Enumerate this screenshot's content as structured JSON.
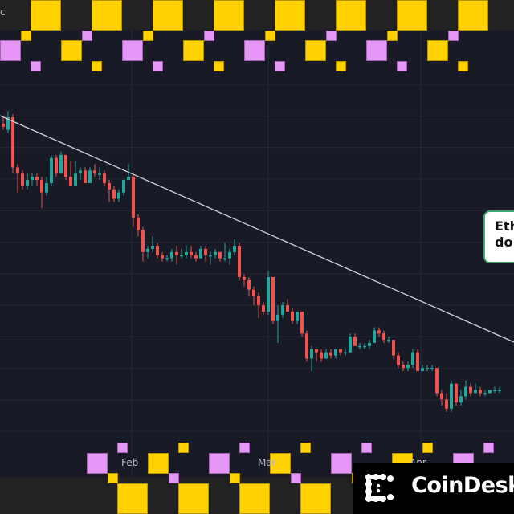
{
  "chart_data": {
    "type": "candlestick",
    "title": "",
    "xlabel": "",
    "ylabel": "",
    "x_tick_labels": [
      "Feb",
      "Mar",
      "Apr"
    ],
    "grid": true,
    "trendline": {
      "from": [
        0,
        144
      ],
      "to": [
        640,
        426
      ],
      "color": "#d0d3da",
      "description": "descending resistance trendline"
    },
    "colors": {
      "up": "#26a69a",
      "down": "#ef5350",
      "background": "#181b26",
      "grid": "#242835"
    },
    "candles_note": "Approximate OHLC in relative price units (higher = higher price), ~1 candle per day, Jan to Apr; overall downtrend",
    "candles": [
      {
        "o": 120,
        "h": 122,
        "l": 118,
        "c": 119
      },
      {
        "o": 118,
        "h": 124,
        "l": 117,
        "c": 122
      },
      {
        "o": 122,
        "h": 123,
        "l": 104,
        "c": 106
      },
      {
        "o": 106,
        "h": 107,
        "l": 98,
        "c": 104
      },
      {
        "o": 104,
        "h": 105,
        "l": 99,
        "c": 100
      },
      {
        "o": 100,
        "h": 104,
        "l": 99,
        "c": 102
      },
      {
        "o": 102,
        "h": 104,
        "l": 100,
        "c": 103
      },
      {
        "o": 103,
        "h": 104,
        "l": 100,
        "c": 102
      },
      {
        "o": 102,
        "h": 103,
        "l": 93,
        "c": 98
      },
      {
        "o": 98,
        "h": 103,
        "l": 97,
        "c": 101
      },
      {
        "o": 101,
        "h": 110,
        "l": 100,
        "c": 109
      },
      {
        "o": 109,
        "h": 110,
        "l": 103,
        "c": 104
      },
      {
        "o": 104,
        "h": 111,
        "l": 104,
        "c": 110
      },
      {
        "o": 110,
        "h": 110,
        "l": 102,
        "c": 103
      },
      {
        "o": 103,
        "h": 108,
        "l": 100,
        "c": 100
      },
      {
        "o": 100,
        "h": 108,
        "l": 100,
        "c": 104
      },
      {
        "o": 104,
        "h": 106,
        "l": 102,
        "c": 105
      },
      {
        "o": 105,
        "h": 106,
        "l": 101,
        "c": 101
      },
      {
        "o": 101,
        "h": 106,
        "l": 101,
        "c": 105
      },
      {
        "o": 105,
        "h": 107,
        "l": 103,
        "c": 104
      },
      {
        "o": 104,
        "h": 106,
        "l": 102,
        "c": 104
      },
      {
        "o": 104,
        "h": 105,
        "l": 100,
        "c": 101
      },
      {
        "o": 101,
        "h": 102,
        "l": 95,
        "c": 99
      },
      {
        "o": 99,
        "h": 100,
        "l": 95,
        "c": 96
      },
      {
        "o": 96,
        "h": 99,
        "l": 95,
        "c": 98
      },
      {
        "o": 98,
        "h": 102,
        "l": 97,
        "c": 102
      },
      {
        "o": 102,
        "h": 107,
        "l": 102,
        "c": 103
      },
      {
        "o": 103,
        "h": 104,
        "l": 87,
        "c": 90
      },
      {
        "o": 90,
        "h": 91,
        "l": 84,
        "c": 86
      },
      {
        "o": 86,
        "h": 87,
        "l": 76,
        "c": 79
      },
      {
        "o": 79,
        "h": 81,
        "l": 77,
        "c": 80
      },
      {
        "o": 80,
        "h": 84,
        "l": 79,
        "c": 81
      },
      {
        "o": 81,
        "h": 82,
        "l": 77,
        "c": 78
      },
      {
        "o": 78,
        "h": 79,
        "l": 76,
        "c": 77
      },
      {
        "o": 77,
        "h": 78,
        "l": 76,
        "c": 77
      },
      {
        "o": 77,
        "h": 80,
        "l": 76,
        "c": 79
      },
      {
        "o": 79,
        "h": 81,
        "l": 75,
        "c": 78
      },
      {
        "o": 78,
        "h": 80,
        "l": 77,
        "c": 78
      },
      {
        "o": 78,
        "h": 81,
        "l": 77,
        "c": 79
      },
      {
        "o": 79,
        "h": 81,
        "l": 77,
        "c": 78
      },
      {
        "o": 78,
        "h": 79,
        "l": 76,
        "c": 77
      },
      {
        "o": 77,
        "h": 81,
        "l": 77,
        "c": 80
      },
      {
        "o": 80,
        "h": 81,
        "l": 76,
        "c": 78
      },
      {
        "o": 78,
        "h": 79,
        "l": 75,
        "c": 78
      },
      {
        "o": 78,
        "h": 80,
        "l": 77,
        "c": 79
      },
      {
        "o": 79,
        "h": 79,
        "l": 76,
        "c": 77
      },
      {
        "o": 77,
        "h": 82,
        "l": 76,
        "c": 77
      },
      {
        "o": 77,
        "h": 80,
        "l": 75,
        "c": 79
      },
      {
        "o": 79,
        "h": 83,
        "l": 78,
        "c": 81
      },
      {
        "o": 81,
        "h": 82,
        "l": 70,
        "c": 71
      },
      {
        "o": 71,
        "h": 72,
        "l": 68,
        "c": 70
      },
      {
        "o": 70,
        "h": 71,
        "l": 65,
        "c": 67
      },
      {
        "o": 67,
        "h": 68,
        "l": 62,
        "c": 65
      },
      {
        "o": 65,
        "h": 66,
        "l": 58,
        "c": 62
      },
      {
        "o": 62,
        "h": 63,
        "l": 59,
        "c": 60
      },
      {
        "o": 60,
        "h": 73,
        "l": 59,
        "c": 71
      },
      {
        "o": 71,
        "h": 71,
        "l": 56,
        "c": 57
      },
      {
        "o": 57,
        "h": 62,
        "l": 50,
        "c": 59
      },
      {
        "o": 59,
        "h": 63,
        "l": 58,
        "c": 62
      },
      {
        "o": 62,
        "h": 64,
        "l": 60,
        "c": 60
      },
      {
        "o": 60,
        "h": 61,
        "l": 56,
        "c": 57
      },
      {
        "o": 57,
        "h": 60,
        "l": 56,
        "c": 60
      },
      {
        "o": 60,
        "h": 60,
        "l": 52,
        "c": 53
      },
      {
        "o": 53,
        "h": 54,
        "l": 44,
        "c": 45
      },
      {
        "o": 45,
        "h": 49,
        "l": 41,
        "c": 48
      },
      {
        "o": 48,
        "h": 48,
        "l": 44,
        "c": 47
      },
      {
        "o": 47,
        "h": 48,
        "l": 44,
        "c": 45
      },
      {
        "o": 45,
        "h": 48,
        "l": 45,
        "c": 47
      },
      {
        "o": 47,
        "h": 48,
        "l": 45,
        "c": 46
      },
      {
        "o": 46,
        "h": 48,
        "l": 45,
        "c": 48
      },
      {
        "o": 48,
        "h": 48,
        "l": 46,
        "c": 47
      },
      {
        "o": 47,
        "h": 48,
        "l": 46,
        "c": 47
      },
      {
        "o": 47,
        "h": 53,
        "l": 47,
        "c": 52
      },
      {
        "o": 52,
        "h": 53,
        "l": 49,
        "c": 49
      },
      {
        "o": 49,
        "h": 50,
        "l": 48,
        "c": 49
      },
      {
        "o": 49,
        "h": 50,
        "l": 48,
        "c": 49
      },
      {
        "o": 49,
        "h": 51,
        "l": 48,
        "c": 50
      },
      {
        "o": 50,
        "h": 55,
        "l": 50,
        "c": 54
      },
      {
        "o": 54,
        "h": 55,
        "l": 52,
        "c": 53
      },
      {
        "o": 53,
        "h": 54,
        "l": 50,
        "c": 51
      },
      {
        "o": 51,
        "h": 52,
        "l": 50,
        "c": 51
      },
      {
        "o": 51,
        "h": 51,
        "l": 45,
        "c": 46
      },
      {
        "o": 46,
        "h": 47,
        "l": 42,
        "c": 43
      },
      {
        "o": 43,
        "h": 44,
        "l": 41,
        "c": 42
      },
      {
        "o": 42,
        "h": 44,
        "l": 41,
        "c": 43
      },
      {
        "o": 43,
        "h": 48,
        "l": 42,
        "c": 47
      },
      {
        "o": 47,
        "h": 48,
        "l": 41,
        "c": 41
      },
      {
        "o": 41,
        "h": 43,
        "l": 41,
        "c": 42
      },
      {
        "o": 42,
        "h": 43,
        "l": 41,
        "c": 42
      },
      {
        "o": 42,
        "h": 43,
        "l": 41,
        "c": 42
      },
      {
        "o": 42,
        "h": 42,
        "l": 33,
        "c": 34
      },
      {
        "o": 34,
        "h": 35,
        "l": 30,
        "c": 32
      },
      {
        "o": 32,
        "h": 34,
        "l": 28,
        "c": 29
      },
      {
        "o": 29,
        "h": 38,
        "l": 28,
        "c": 37
      },
      {
        "o": 37,
        "h": 37,
        "l": 30,
        "c": 31
      },
      {
        "o": 31,
        "h": 35,
        "l": 30,
        "c": 33
      },
      {
        "o": 33,
        "h": 38,
        "l": 32,
        "c": 36
      },
      {
        "o": 36,
        "h": 37,
        "l": 33,
        "c": 34
      },
      {
        "o": 34,
        "h": 37,
        "l": 34,
        "c": 35
      },
      {
        "o": 35,
        "h": 36,
        "l": 33,
        "c": 34
      },
      {
        "o": 34,
        "h": 35,
        "l": 33,
        "c": 34
      },
      {
        "o": 34,
        "h": 35,
        "l": 34,
        "c": 35
      },
      {
        "o": 35,
        "h": 36,
        "l": 34,
        "c": 35
      },
      {
        "o": 35,
        "h": 36,
        "l": 34,
        "c": 35
      }
    ]
  },
  "header": {
    "edge_label": "c"
  },
  "axis": {
    "feb": "Feb",
    "mar": "Mar",
    "apr": "Apr"
  },
  "callout": {
    "line1": "Eth",
    "line2": "do"
  },
  "brand": {
    "name": "CoinDesk"
  }
}
